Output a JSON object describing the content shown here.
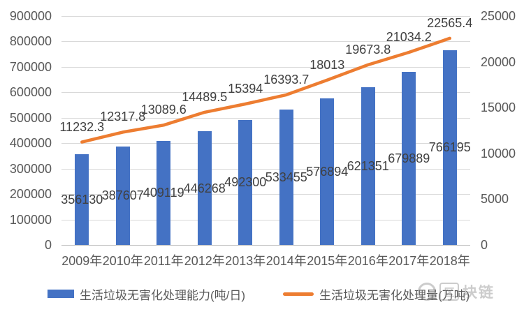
{
  "chart_data": {
    "type": "combo-bar-line",
    "title": "",
    "categories": [
      "2009年",
      "2010年",
      "2011年",
      "2012年",
      "2013年",
      "2014年",
      "2015年",
      "2016年",
      "2017年",
      "2018年"
    ],
    "series": [
      {
        "name": "生活垃圾无害化处理能力(吨/日)",
        "type": "bar",
        "axis": "left",
        "color": "#4472C4",
        "values": [
          356130,
          387607,
          409119,
          446268,
          492300,
          533455,
          576894,
          621351,
          679889,
          766195
        ],
        "data_labels": [
          "356130",
          "387607",
          "409119",
          "446268",
          "492300",
          "533455",
          "576894",
          "621351",
          "679889",
          "766195"
        ]
      },
      {
        "name": "生活垃圾无害化处理量(万吨)",
        "type": "line",
        "axis": "right",
        "color": "#ED7D31",
        "values": [
          11232.3,
          12317.8,
          13089.6,
          14489.5,
          15394,
          16393.7,
          18013,
          19673.8,
          21034.2,
          22565.4
        ],
        "data_labels": [
          "11232.3",
          "12317.8",
          "13089.6",
          "14489.5",
          "15394",
          "16393.7",
          "18013",
          "19673.8",
          "21034.2",
          "22565.4"
        ]
      }
    ],
    "left_axis": {
      "min": 0,
      "max": 900000,
      "step": 100000,
      "tick_labels_top_to_bottom": [
        "900000",
        "800000",
        "700000",
        "600000",
        "500000",
        "400000",
        "300000",
        "200000",
        "100000",
        "0"
      ]
    },
    "right_axis": {
      "min": 0,
      "max": 25000,
      "step": 5000,
      "tick_labels_top_to_bottom": [
        "25000",
        "20000",
        "15000",
        "10000",
        "5000",
        "0"
      ]
    },
    "legend_position": "bottom",
    "grid": true
  },
  "watermark": {
    "icon": "blockchain-logo-icon",
    "text": "区块链"
  },
  "colors": {
    "bar": "#4472C4",
    "line": "#ED7D31",
    "gridline": "#D9D9D9",
    "axis_line": "#BFBFBF",
    "tick_text": "#595959",
    "data_label_text": "#404040",
    "background": "#FFFFFF"
  }
}
